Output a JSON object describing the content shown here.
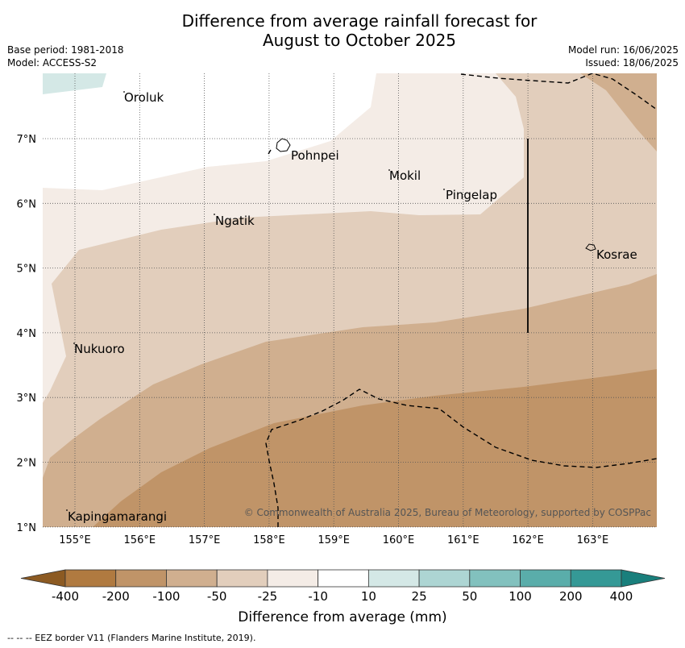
{
  "title": {
    "line1": "Difference from average rainfall forecast for",
    "line2": "August to October 2025"
  },
  "meta_left": {
    "base_period": "Base period: 1981-2018",
    "model": "Model: ACCESS-S2"
  },
  "meta_right": {
    "model_run": "Model run: 16/06/2025",
    "issued": "Issued: 18/06/2025"
  },
  "map": {
    "lon_ticks": [
      "155°E",
      "156°E",
      "157°E",
      "158°E",
      "159°E",
      "160°E",
      "161°E",
      "162°E",
      "163°E"
    ],
    "lat_ticks": [
      "7°N",
      "6°N",
      "5°N",
      "4°N",
      "3°N",
      "2°N",
      "1°N"
    ],
    "places": [
      {
        "name": "Oroluk"
      },
      {
        "name": "Pohnpei"
      },
      {
        "name": "Mokil"
      },
      {
        "name": "Pingelap"
      },
      {
        "name": "Ngatik"
      },
      {
        "name": "Kosrae"
      },
      {
        "name": "Nukuoro"
      },
      {
        "name": "Kapingamarangi"
      }
    ],
    "copyright": "© Commonwealth of Australia 2025, Bureau of Meteorology, supported by COSPPac"
  },
  "colorbar": {
    "title": "Difference from average (mm)",
    "ticks": [
      "-400",
      "-200",
      "-100",
      "-50",
      "-25",
      "-10",
      "10",
      "25",
      "50",
      "100",
      "200",
      "400"
    ],
    "colors": [
      "#b07a40",
      "#c09468",
      "#d0af8f",
      "#e2cebc",
      "#f4ece6",
      "#ffffff",
      "#d4e8e6",
      "#add5d3",
      "#82c1be",
      "#5aadaa",
      "#359996"
    ],
    "extend_low": "#8c5a22",
    "extend_high": "#197f7c"
  },
  "footer": "--  --  -- EEZ border V11 (Flanders Marine Institute, 2019)."
}
